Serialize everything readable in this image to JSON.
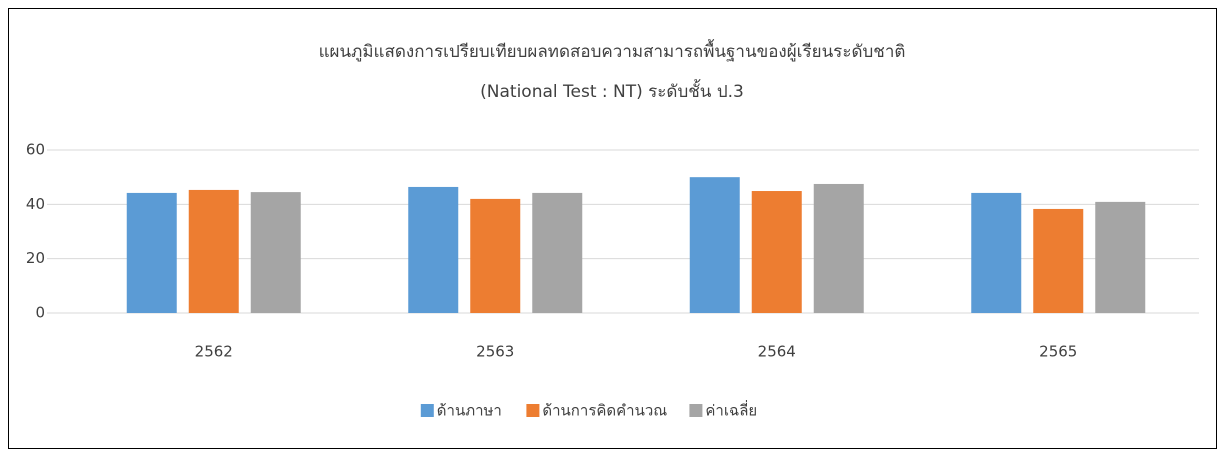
{
  "chart_data": {
    "type": "bar",
    "title": "แผนภูมิแสดงการเปรียบเทียบผลทดสอบความสามารถพื้นฐานของผู้เรียนระดับชาติ",
    "subtitle": "(National Test : NT) ระดับชั้น ป.3",
    "categories": [
      "2562",
      "2563",
      "2564",
      "2565"
    ],
    "series": [
      {
        "name": "ด้านภาษา",
        "color": "#5b9bd5",
        "values": [
          44.2,
          46.4,
          50.0,
          44.2
        ]
      },
      {
        "name": "ด้านการคิดคำนวณ",
        "color": "#ed7d31",
        "values": [
          45.3,
          42.0,
          44.9,
          38.3
        ]
      },
      {
        "name": "ค่าเฉลี่ย",
        "color": "#a5a5a5",
        "values": [
          44.5,
          44.2,
          47.5,
          40.9
        ]
      }
    ],
    "ylim": [
      0,
      60
    ],
    "yticks": [
      0,
      20,
      40,
      60
    ],
    "grid": true,
    "legend": "bottom"
  }
}
